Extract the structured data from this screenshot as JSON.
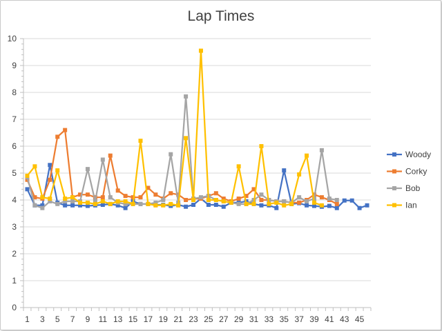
{
  "chart_data": {
    "type": "line",
    "title": "Lap Times",
    "xlabel": "",
    "ylabel": "",
    "ylim": [
      0,
      10
    ],
    "yticks": [
      0,
      1,
      2,
      3,
      4,
      5,
      6,
      7,
      8,
      9,
      10
    ],
    "xlim": [
      1,
      46
    ],
    "xticks": [
      1,
      3,
      5,
      7,
      9,
      11,
      13,
      15,
      17,
      19,
      21,
      23,
      25,
      27,
      29,
      31,
      33,
      35,
      37,
      39,
      41,
      43,
      45
    ],
    "grid": true,
    "legend_position": "right",
    "series": [
      {
        "name": "Woody",
        "color": "#4472C4",
        "marker": "square",
        "x": [
          1,
          2,
          3,
          4,
          5,
          6,
          7,
          8,
          9,
          10,
          11,
          12,
          13,
          14,
          15,
          16,
          17,
          18,
          19,
          20,
          21,
          22,
          23,
          24,
          25,
          26,
          27,
          28,
          29,
          30,
          31,
          32,
          33,
          34,
          35,
          36,
          37,
          38,
          39,
          40,
          41,
          42,
          43,
          44,
          45,
          46
        ],
        "values": [
          4.4,
          3.8,
          3.8,
          5.3,
          3.9,
          3.8,
          3.8,
          3.8,
          3.78,
          3.8,
          3.82,
          3.85,
          3.8,
          3.7,
          3.95,
          3.85,
          3.85,
          3.82,
          3.82,
          3.78,
          3.82,
          3.75,
          3.82,
          4.05,
          3.82,
          3.82,
          3.75,
          3.9,
          3.9,
          3.95,
          3.85,
          3.8,
          3.8,
          3.7,
          5.1,
          3.85,
          3.88,
          3.8,
          3.78,
          3.75,
          3.78,
          3.7,
          3.98,
          3.98,
          3.7,
          3.8
        ]
      },
      {
        "name": "Corky",
        "color": "#ED7D31",
        "marker": "square",
        "x": [
          1,
          2,
          3,
          4,
          5,
          6,
          7,
          8,
          9,
          10,
          11,
          12,
          13,
          14,
          15,
          16,
          17,
          18,
          19,
          20,
          21,
          22,
          23,
          24,
          25,
          26,
          27,
          28,
          29,
          30,
          31,
          32,
          33,
          34,
          35,
          36,
          37,
          38,
          39,
          40,
          41,
          42
        ],
        "values": [
          4.75,
          4.1,
          4.05,
          4.75,
          6.35,
          6.6,
          4.1,
          4.2,
          4.2,
          4.1,
          4.1,
          5.65,
          4.35,
          4.15,
          4.1,
          4.1,
          4.45,
          4.2,
          4.05,
          4.25,
          4.2,
          4.0,
          4.05,
          4.05,
          4.15,
          4.25,
          4.05,
          3.95,
          4.05,
          4.15,
          4.4,
          4.0,
          4.0,
          3.95,
          3.95,
          3.9,
          3.9,
          4.0,
          4.2,
          4.1,
          4.0,
          3.85
        ]
      },
      {
        "name": "Bob",
        "color": "#A5A5A5",
        "marker": "square",
        "x": [
          1,
          2,
          3,
          4,
          5,
          6,
          7,
          8,
          9,
          10,
          11,
          12,
          13,
          14,
          15,
          16,
          17,
          18,
          19,
          20,
          21,
          22,
          23,
          24,
          25,
          26,
          27,
          28,
          29,
          30,
          31,
          32,
          33,
          34,
          35,
          36,
          37,
          38,
          39,
          40,
          41,
          42
        ],
        "values": [
          4.85,
          3.8,
          3.7,
          3.95,
          3.85,
          3.95,
          3.95,
          3.95,
          5.15,
          3.95,
          5.5,
          4.1,
          3.9,
          3.85,
          3.85,
          3.85,
          3.85,
          3.9,
          4.0,
          5.7,
          3.9,
          7.85,
          4.05,
          4.1,
          4.15,
          4.0,
          3.95,
          3.9,
          3.85,
          3.85,
          4.0,
          4.2,
          4.0,
          3.95,
          3.95,
          3.9,
          4.1,
          3.95,
          4.05,
          5.85,
          4.05,
          4.0
        ]
      },
      {
        "name": "Ian",
        "color": "#FFC000",
        "marker": "square",
        "x": [
          1,
          2,
          3,
          4,
          5,
          6,
          7,
          8,
          9,
          10,
          11,
          12,
          13,
          14,
          15,
          16,
          17,
          18,
          19,
          20,
          21,
          22,
          23,
          24,
          25,
          26,
          27,
          28,
          29,
          30,
          31,
          32,
          33,
          34,
          35,
          36,
          37,
          38,
          39,
          40
        ],
        "values": [
          4.9,
          5.25,
          4.1,
          4.05,
          5.1,
          4.05,
          4.1,
          3.9,
          3.9,
          3.85,
          3.95,
          3.85,
          3.95,
          3.95,
          3.85,
          6.2,
          3.85,
          3.8,
          3.8,
          3.85,
          3.8,
          6.3,
          4.0,
          9.55,
          4.0,
          4.0,
          3.95,
          3.9,
          5.25,
          3.85,
          3.85,
          6.0,
          3.85,
          3.9,
          3.8,
          3.85,
          4.95,
          5.65,
          3.9,
          3.8
        ]
      }
    ]
  }
}
